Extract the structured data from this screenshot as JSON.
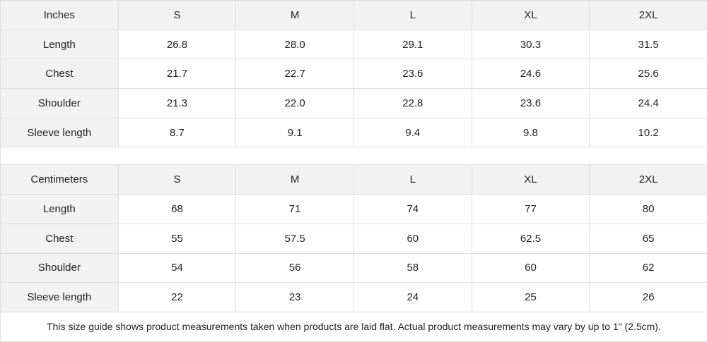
{
  "tables": [
    {
      "header": [
        "Inches",
        "S",
        "M",
        "L",
        "XL",
        "2XL"
      ],
      "rows": [
        [
          "Length",
          "26.8",
          "28.0",
          "29.1",
          "30.3",
          "31.5"
        ],
        [
          "Chest",
          "21.7",
          "22.7",
          "23.6",
          "24.6",
          "25.6"
        ],
        [
          "Shoulder",
          "21.3",
          "22.0",
          "22.8",
          "23.6",
          "24.4"
        ],
        [
          "Sleeve length",
          "8.7",
          "9.1",
          "9.4",
          "9.8",
          "10.2"
        ]
      ]
    },
    {
      "header": [
        "Centimeters",
        "S",
        "M",
        "L",
        "XL",
        "2XL"
      ],
      "rows": [
        [
          "Length",
          "68",
          "71",
          "74",
          "77",
          "80"
        ],
        [
          "Chest",
          "55",
          "57.5",
          "60",
          "62.5",
          "65"
        ],
        [
          "Shoulder",
          "54",
          "56",
          "58",
          "60",
          "62"
        ],
        [
          "Sleeve length",
          "22",
          "23",
          "24",
          "25",
          "26"
        ]
      ]
    }
  ],
  "note": "This size guide shows product measurements taken when products are laid flat.  Actual product measurements may vary by up to 1\" (2.5cm).",
  "colors": {
    "header_bg": "#f2f2f2",
    "border": "#e0e0e0"
  }
}
